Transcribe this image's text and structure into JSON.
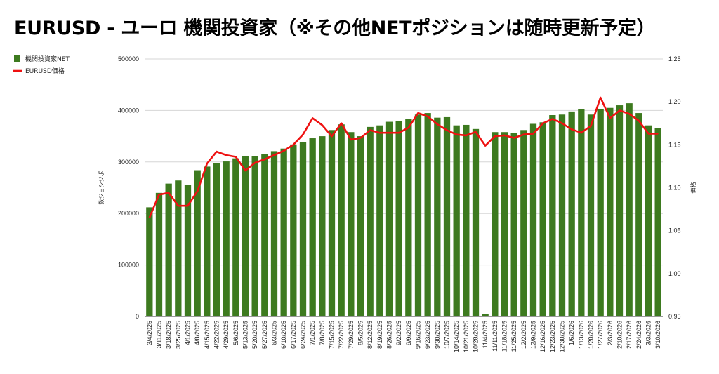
{
  "chart_data": {
    "type": "bar",
    "title": "EURUSD - ユーロ 機関投資家（※その他NETポジションは随時更新予定）",
    "ylabel_left": "数ジョシジポ",
    "ylabel_right": "価格",
    "ylim_left": [
      0,
      500000
    ],
    "ylim_right": [
      0.95,
      1.25
    ],
    "yticks_left": [
      "0",
      "100000",
      "200000",
      "300000",
      "400000",
      "500000"
    ],
    "yticks_right": [
      "0.95",
      "1.00",
      "1.05",
      "1.10",
      "1.15",
      "1.20",
      "1.25"
    ],
    "grid": true,
    "legend_position": "top-left",
    "colors": {
      "bar": "#3d7a1f",
      "line": "#ee1111"
    },
    "categories": [
      "3/4/2025",
      "3/11/2025",
      "3/18/2025",
      "3/25/2025",
      "4/1/2025",
      "4/8/2025",
      "4/15/2025",
      "4/22/2025",
      "4/29/2025",
      "5/6/2025",
      "5/13/2025",
      "5/20/2025",
      "5/27/2025",
      "6/3/2025",
      "6/10/2025",
      "6/17/2025",
      "6/24/2025",
      "7/1/2025",
      "7/8/2025",
      "7/15/2025",
      "7/22/2025",
      "7/29/2025",
      "8/5/2025",
      "8/12/2025",
      "8/19/2025",
      "8/26/2025",
      "9/2/2025",
      "9/9/2025",
      "9/16/2025",
      "9/23/2025",
      "9/30/2025",
      "10/7/2025",
      "10/14/2025",
      "10/21/2025",
      "10/28/2025",
      "11/4/2025",
      "11/11/2025",
      "11/18/2025",
      "11/25/2025",
      "12/2/2025",
      "12/9/2025",
      "12/16/2025",
      "12/23/2025",
      "12/30/2025",
      "1/6/2026",
      "1/13/2026",
      "1/20/2026",
      "1/27/2026",
      "2/3/2026",
      "2/10/2026",
      "2/17/2026",
      "2/24/2026",
      "3/3/2026",
      "3/10/2026"
    ],
    "series": [
      {
        "name": "機関投資家NET",
        "type": "bar",
        "axis": "left",
        "values": [
          212000,
          240000,
          258000,
          264000,
          256000,
          284000,
          291000,
          297000,
          301000,
          307000,
          312000,
          311000,
          316000,
          321000,
          326000,
          334000,
          339000,
          346000,
          350000,
          362000,
          373000,
          358000,
          350000,
          368000,
          371000,
          378000,
          380000,
          384000,
          392000,
          395000,
          386000,
          387000,
          371000,
          372000,
          364000,
          5000,
          358000,
          358000,
          356000,
          362000,
          374000,
          377000,
          391000,
          392000,
          398000,
          403000,
          392000,
          403000,
          405000,
          410000,
          414000,
          395000,
          371000,
          366000
        ]
      },
      {
        "name": "EURUSD価格",
        "type": "line",
        "axis": "right",
        "values": [
          1.065,
          1.092,
          1.094,
          1.079,
          1.079,
          1.096,
          1.128,
          1.142,
          1.138,
          1.136,
          1.12,
          1.129,
          1.133,
          1.138,
          1.143,
          1.15,
          1.162,
          1.181,
          1.173,
          1.16,
          1.175,
          1.156,
          1.158,
          1.167,
          1.164,
          1.164,
          1.164,
          1.17,
          1.187,
          1.183,
          1.174,
          1.167,
          1.162,
          1.161,
          1.165,
          1.149,
          1.16,
          1.161,
          1.158,
          1.162,
          1.163,
          1.175,
          1.18,
          1.175,
          1.168,
          1.164,
          1.172,
          1.205,
          1.181,
          1.19,
          1.186,
          1.178,
          1.163,
          1.163
        ]
      }
    ]
  }
}
